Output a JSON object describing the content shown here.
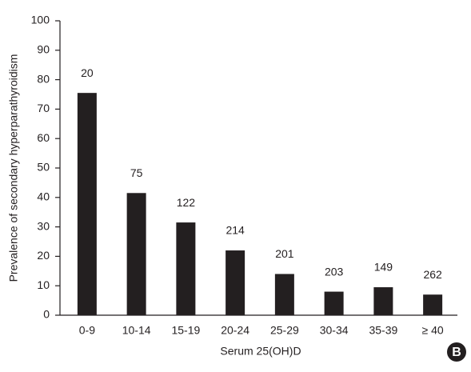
{
  "chart_data": {
    "type": "bar",
    "x_label": "Serum 25(OH)D",
    "y_label": "Prevalence of secondary hyperparathyroidism",
    "categories": [
      "0-9",
      "10-14",
      "15-19",
      "20-24",
      "25-29",
      "30-34",
      "35-39",
      "≥ 40"
    ],
    "values": [
      75.5,
      41.5,
      31.5,
      22,
      14,
      8,
      9.5,
      7
    ],
    "sample_sizes": [
      20,
      75,
      122,
      214,
      201,
      203,
      149,
      262
    ],
    "color": "#231f20",
    "ylim": [
      0,
      100
    ],
    "yticks": [
      0,
      10,
      20,
      30,
      40,
      50,
      60,
      70,
      80,
      90,
      100
    ],
    "grid": false,
    "panel_label": "B"
  }
}
